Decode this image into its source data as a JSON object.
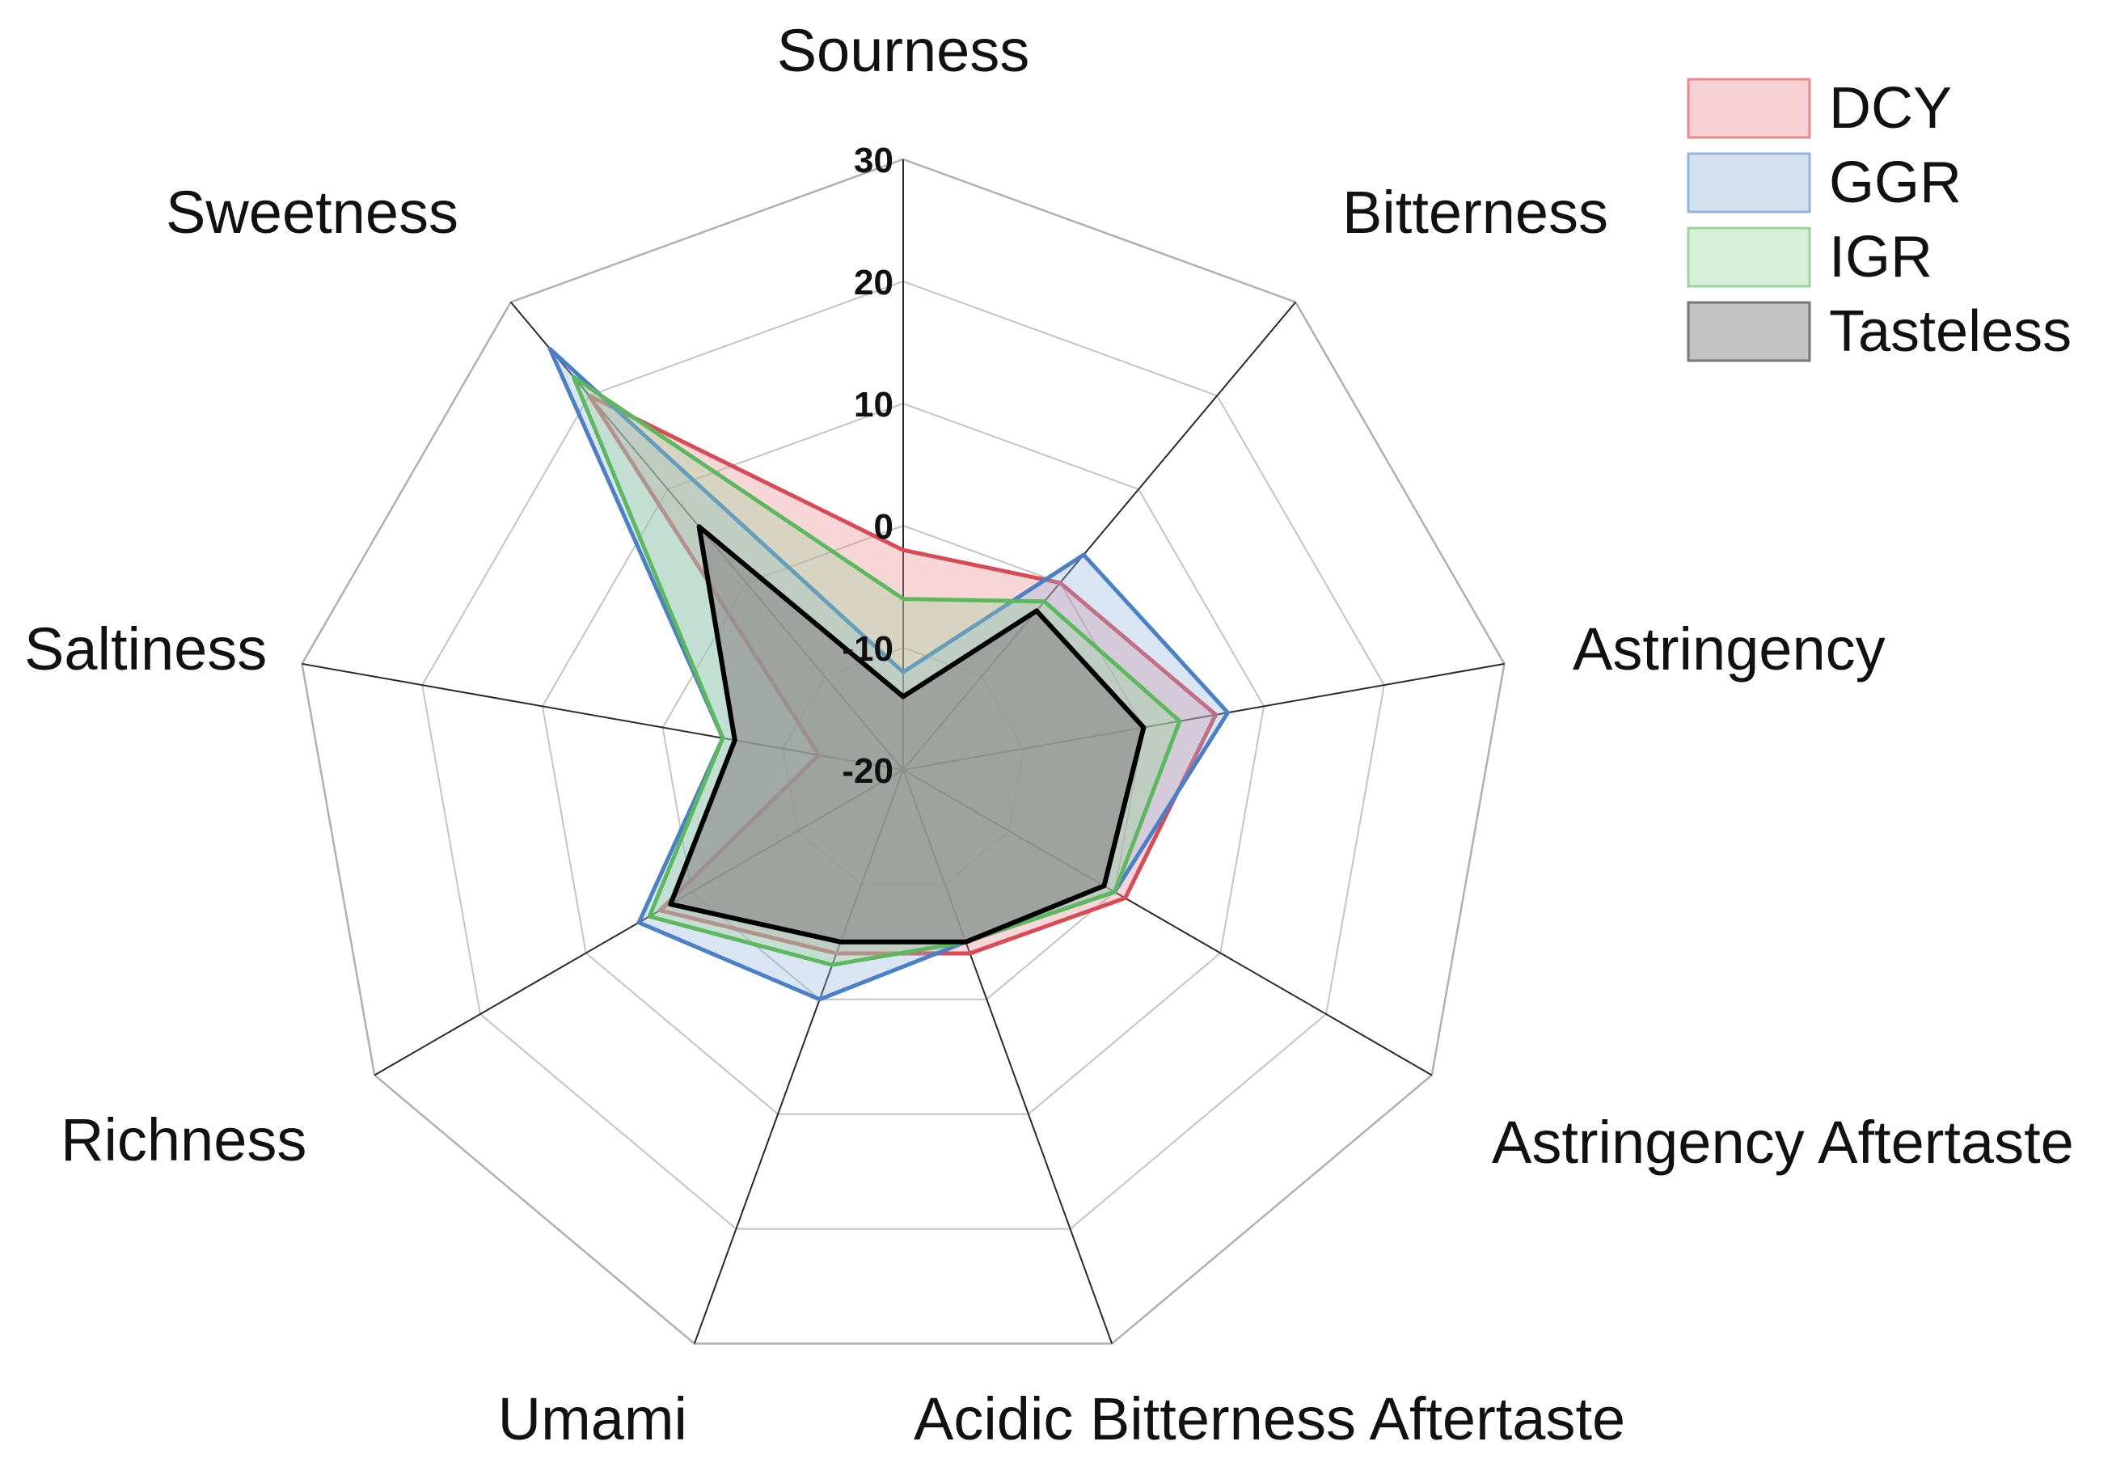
{
  "chart_data": {
    "type": "radar",
    "title": "",
    "axes": [
      "Sourness",
      "Bitterness",
      "Astringency",
      "Astringency Aftertaste",
      "Acidic Bitterness Aftertaste",
      "Umami",
      "Richness",
      "Saltiness",
      "Sweetness"
    ],
    "range": [
      -20,
      30
    ],
    "ticks": [
      -20,
      -10,
      0,
      10,
      20,
      30
    ],
    "grid": true,
    "legend_position": "top-right",
    "series": [
      {
        "name": "DCY",
        "values": [
          -2,
          0,
          6,
          1,
          -4,
          -4,
          3,
          -13,
          20
        ],
        "stroke": "#d94a55",
        "fill": "#e8898f"
      },
      {
        "name": "GGR",
        "values": [
          -12,
          3,
          7,
          0,
          -5,
          0,
          5,
          -5,
          25
        ],
        "stroke": "#4a80c8",
        "fill": "#93b4dd"
      },
      {
        "name": "IGR",
        "values": [
          -6,
          -2,
          3,
          0,
          -5,
          -3,
          4,
          -5,
          22
        ],
        "stroke": "#5cb85c",
        "fill": "#9bd49b"
      },
      {
        "name": "Tasteless",
        "values": [
          -14,
          -3,
          0,
          -1,
          -5,
          -5,
          2,
          -6,
          6
        ],
        "stroke": "#000000",
        "fill": "#8f8f8f"
      }
    ]
  }
}
